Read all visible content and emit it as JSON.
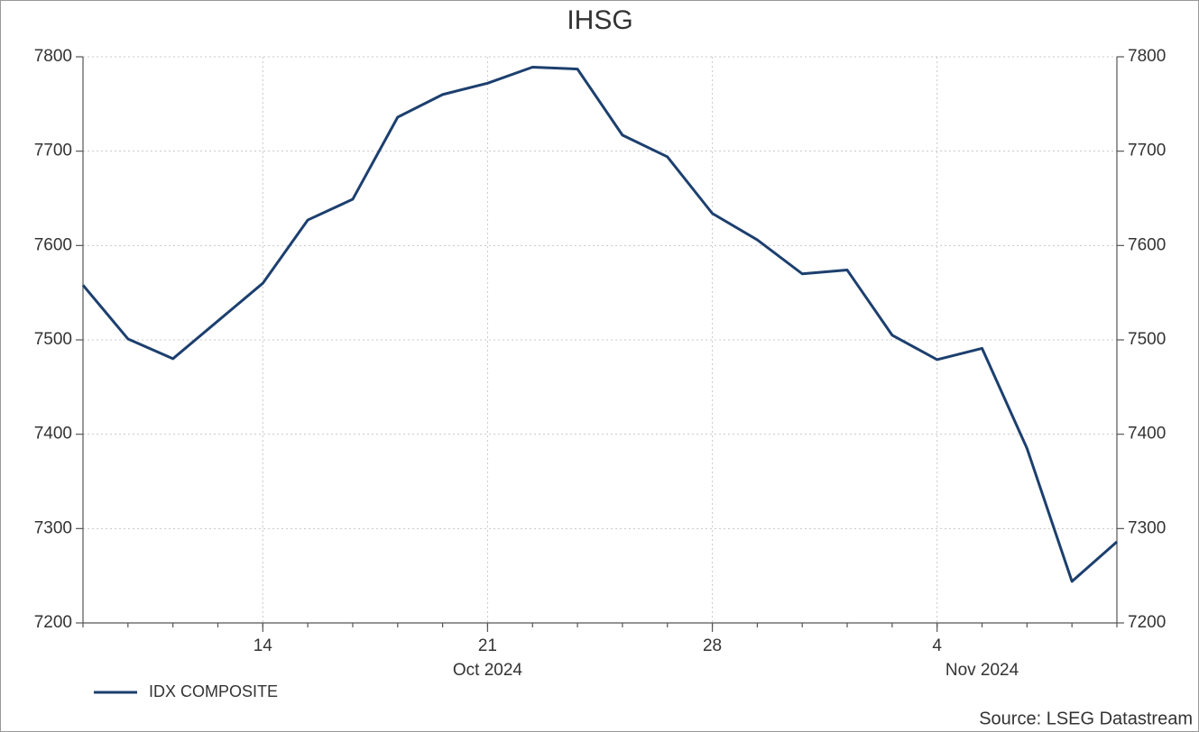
{
  "chart_data": {
    "type": "line",
    "title": "IHSG",
    "x": [
      "2024-10-08",
      "2024-10-09",
      "2024-10-10",
      "2024-10-11",
      "2024-10-14",
      "2024-10-15",
      "2024-10-16",
      "2024-10-17",
      "2024-10-18",
      "2024-10-21",
      "2024-10-22",
      "2024-10-23",
      "2024-10-24",
      "2024-10-25",
      "2024-10-28",
      "2024-10-29",
      "2024-10-30",
      "2024-10-31",
      "2024-11-01",
      "2024-11-04",
      "2024-11-05",
      "2024-11-06",
      "2024-11-07",
      "2024-11-08"
    ],
    "series": [
      {
        "name": "IDX COMPOSITE",
        "color": "#1c3f6e",
        "values": [
          7558,
          7501,
          7480,
          7520,
          7560,
          7627,
          7649,
          7736,
          7760,
          7772,
          7789,
          7787,
          7717,
          7694,
          7634,
          7606,
          7570,
          7574,
          7505,
          7479,
          7491,
          7385,
          7244,
          7286
        ]
      }
    ],
    "xticks": [
      {
        "value": "2024-10-14",
        "label": "14"
      },
      {
        "value": "2024-10-21",
        "label": "21"
      },
      {
        "value": "2024-10-28",
        "label": "28"
      },
      {
        "value": "2024-11-04",
        "label": "4"
      }
    ],
    "month_labels": [
      {
        "value": "2024-10-21",
        "label": "Oct 2024"
      },
      {
        "value": "2024-11-05",
        "label": "Nov 2024"
      }
    ],
    "ylim": [
      7200,
      7800
    ],
    "yticks": [
      7200,
      7300,
      7400,
      7500,
      7600,
      7700,
      7800
    ],
    "y2lim": [
      7200,
      7800
    ],
    "y2ticks": [
      7200,
      7300,
      7400,
      7500,
      7600,
      7700,
      7800
    ],
    "grid": true,
    "legend": "bottom-left",
    "source": "Source: LSEG Datastream"
  }
}
